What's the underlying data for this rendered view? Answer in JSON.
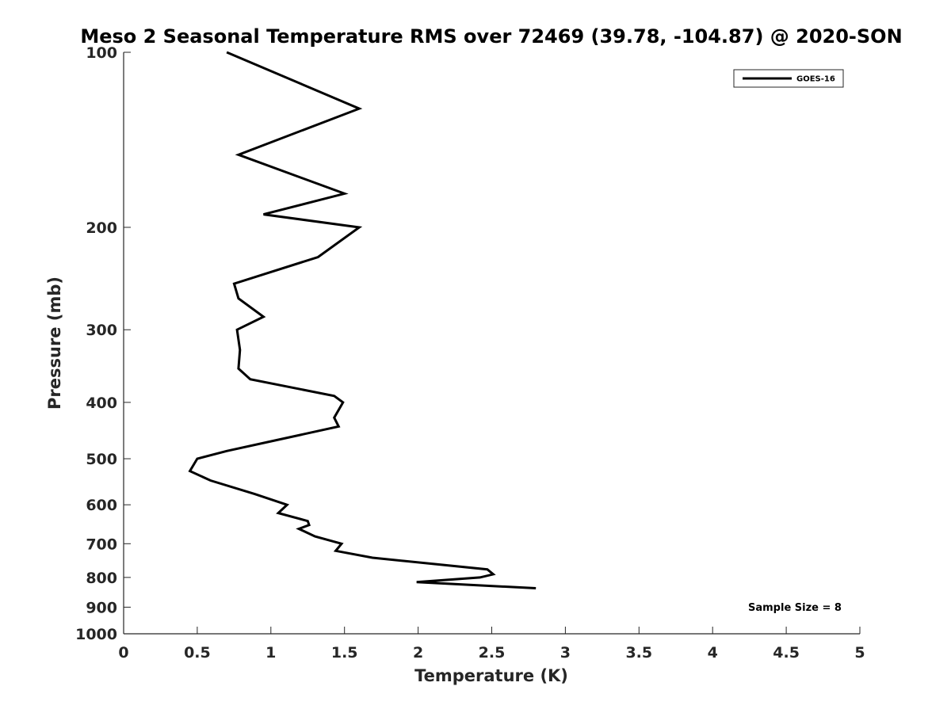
{
  "chart_data": {
    "type": "line",
    "title": "Meso 2 Seasonal Temperature RMS over 72469 (39.78, -104.87) @ 2020-SON",
    "xlabel": "Temperature (K)",
    "ylabel": "Pressure (mb)",
    "xlim": [
      0,
      5
    ],
    "ylim": [
      1000,
      100
    ],
    "yscale": "log",
    "x_ticks": [
      0,
      0.5,
      1,
      1.5,
      2,
      2.5,
      3,
      3.5,
      4,
      4.5,
      5
    ],
    "x_tick_labels": [
      "0",
      "0.5",
      "1",
      "1.5",
      "2",
      "2.5",
      "3",
      "3.5",
      "4",
      "4.5",
      "5"
    ],
    "y_ticks": [
      100,
      200,
      300,
      400,
      500,
      600,
      700,
      800,
      900,
      1000
    ],
    "y_tick_labels": [
      "100",
      "200",
      "300",
      "400",
      "500",
      "600",
      "700",
      "800",
      "900",
      "1000"
    ],
    "grid": false,
    "legend_position": "top-right",
    "series": [
      {
        "name": "GOES-16",
        "color": "#000000",
        "x": [
          0.7,
          1.6,
          0.78,
          1.5,
          0.95,
          1.6,
          1.32,
          0.75,
          0.78,
          0.95,
          0.77,
          0.79,
          0.78,
          0.86,
          1.43,
          1.49,
          1.43,
          1.46,
          1.03,
          0.7,
          0.5,
          0.45,
          0.59,
          0.89,
          1.11,
          1.05,
          1.25,
          1.26,
          1.19,
          1.3,
          1.48,
          1.44,
          1.69,
          2.47,
          2.51,
          2.42,
          1.99,
          2.8
        ],
        "y": [
          100,
          125,
          150,
          175,
          190,
          200,
          225,
          250,
          265,
          285,
          300,
          325,
          350,
          365,
          390,
          400,
          425,
          440,
          465,
          485,
          500,
          525,
          545,
          575,
          600,
          620,
          640,
          650,
          660,
          680,
          700,
          720,
          740,
          775,
          790,
          800,
          815,
          835
        ]
      }
    ],
    "annotations": [
      "Sample Size = 8"
    ]
  }
}
